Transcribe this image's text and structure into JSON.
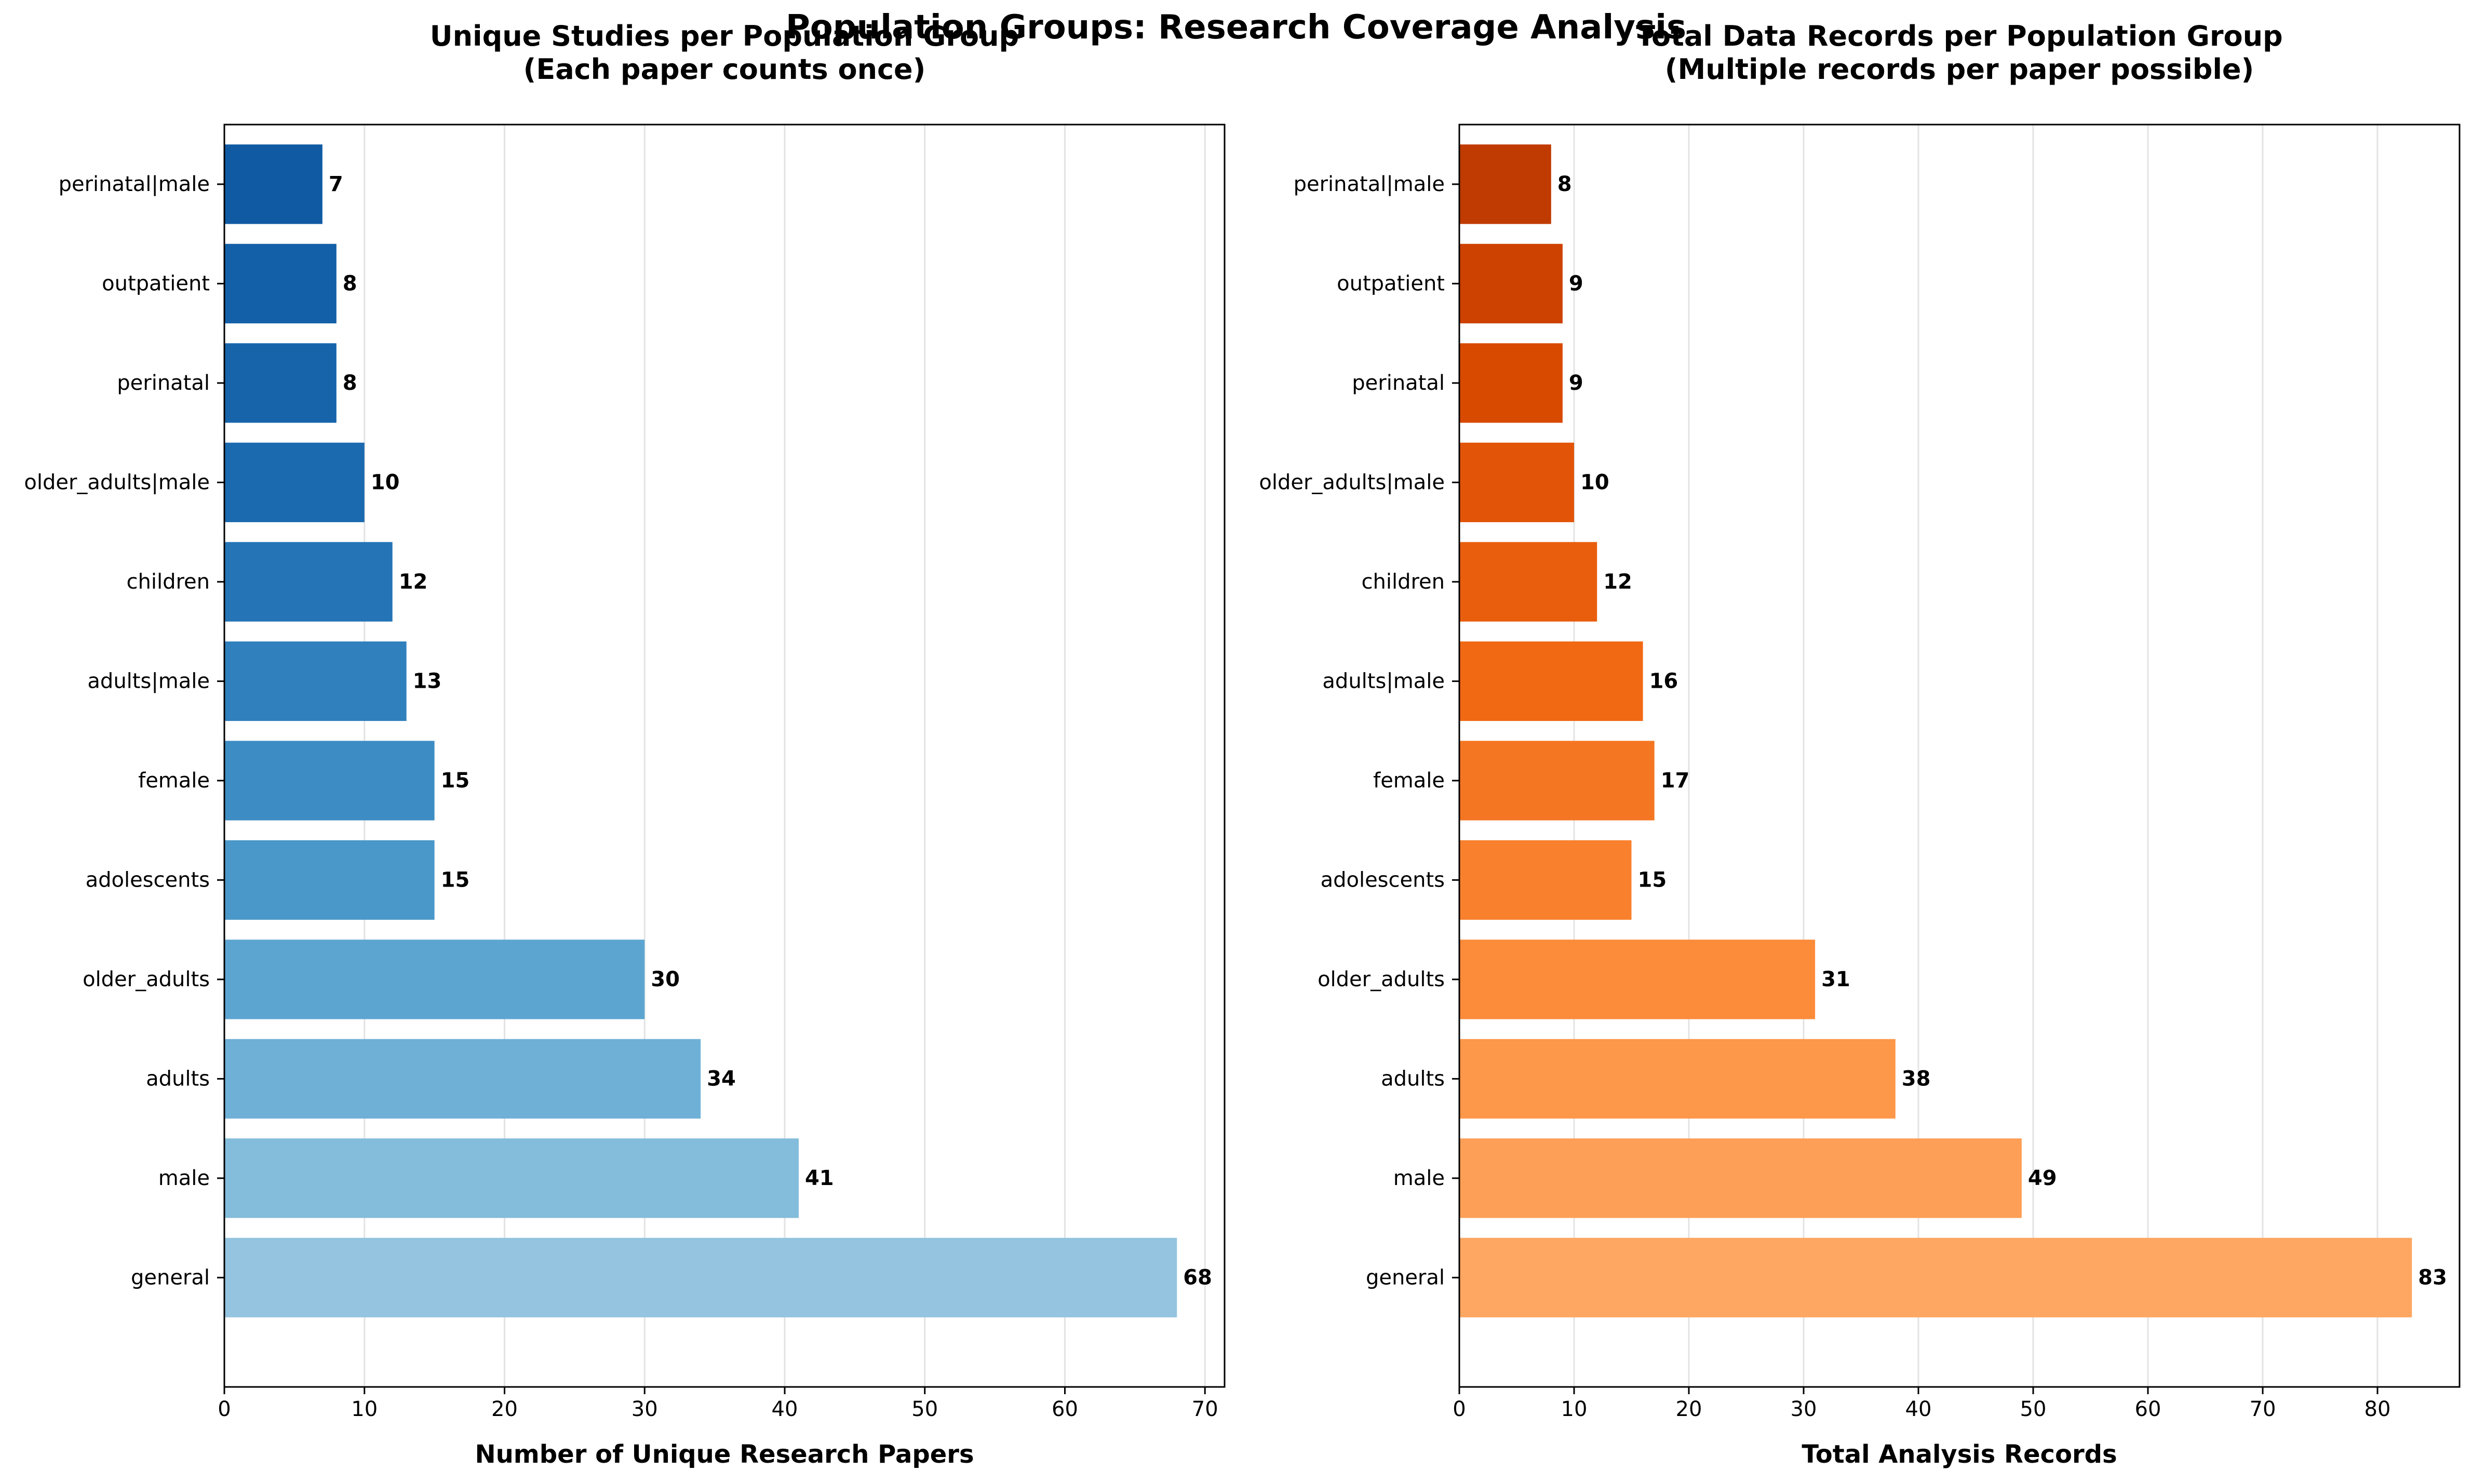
{
  "suptitle": "Population Groups: Research Coverage Analysis",
  "chart_data": [
    {
      "type": "bar",
      "orientation": "horizontal",
      "title": "Unique Studies per Population Group\n(Each paper counts once)",
      "xlabel": "Number of Unique Research Papers",
      "ylabel": "",
      "categories": [
        "general",
        "male",
        "adults",
        "older_adults",
        "adolescents",
        "female",
        "adults|male",
        "children",
        "older_adults|male",
        "perinatal",
        "outpatient",
        "perinatal|male"
      ],
      "values": [
        68,
        41,
        34,
        30,
        15,
        15,
        13,
        12,
        10,
        8,
        8,
        7
      ],
      "xlim": [
        0,
        71.4
      ],
      "xticks": [
        0,
        10,
        20,
        30,
        40,
        50,
        60,
        70
      ],
      "grid": "x",
      "colors": [
        "#94c4df",
        "#84bcdb",
        "#6fb0d7",
        "#5da5d1",
        "#4a98c9",
        "#3d8dc4",
        "#3080bd",
        "#2474b6",
        "#1b6aaf",
        "#1764ab",
        "#1460a8",
        "#0f5aa3"
      ]
    },
    {
      "type": "bar",
      "orientation": "horizontal",
      "title": "Total Data Records per Population Group\n(Multiple records per paper possible)",
      "xlabel": "Total Analysis Records",
      "ylabel": "",
      "categories": [
        "general",
        "male",
        "adults",
        "older_adults",
        "adolescents",
        "female",
        "adults|male",
        "children",
        "older_adults|male",
        "perinatal",
        "outpatient",
        "perinatal|male"
      ],
      "values": [
        83,
        49,
        38,
        31,
        15,
        17,
        16,
        12,
        10,
        9,
        9,
        8
      ],
      "xlim": [
        0,
        87.15
      ],
      "xticks": [
        0,
        10,
        20,
        30,
        40,
        50,
        60,
        70,
        80
      ],
      "grid": "x",
      "colors": [
        "#fda762",
        "#fd9f56",
        "#fd974a",
        "#fc8b3a",
        "#f9802d",
        "#f57622",
        "#f16913",
        "#e95e0d",
        "#e25508",
        "#d94a01",
        "#ce4201",
        "#c03b02"
      ]
    }
  ]
}
